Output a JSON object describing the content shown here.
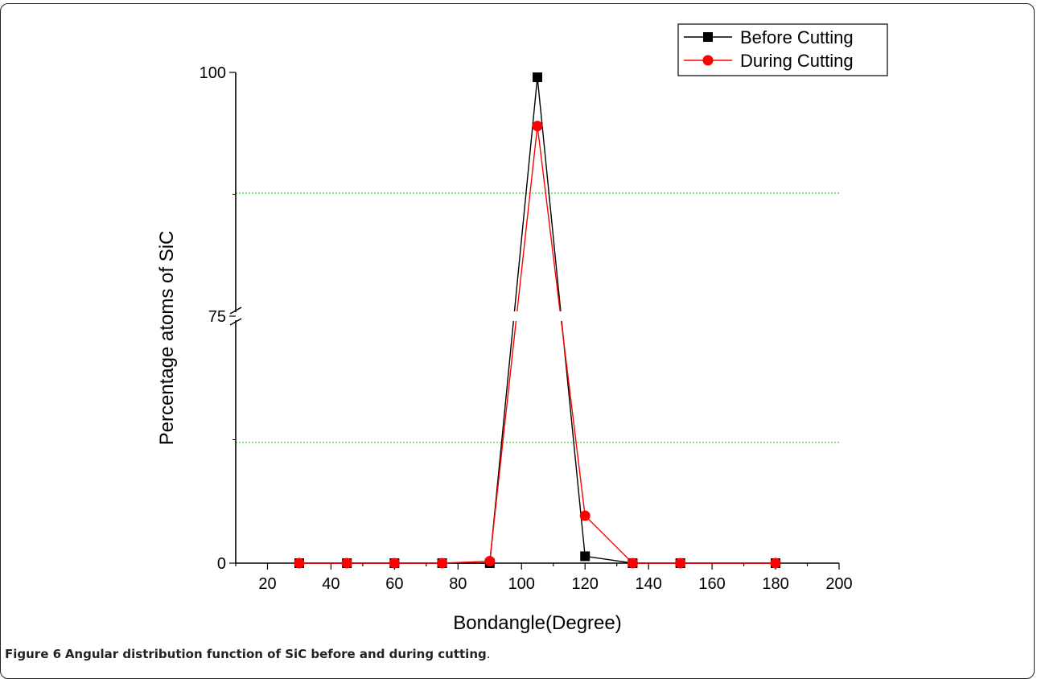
{
  "chart_data": {
    "type": "line",
    "xlabel": "Bondangle(Degree)",
    "ylabel": "Percentage atoms of SiC",
    "xlim": [
      10,
      200
    ],
    "x_ticks": [
      "20",
      "40",
      "60",
      "80",
      "100",
      "120",
      "140",
      "160",
      "180",
      "200"
    ],
    "y_ticks": [
      "0",
      "75",
      "100"
    ],
    "y_axis_break": [
      25,
      75
    ],
    "legend_position": "top-right",
    "series": [
      {
        "name": "Before Cutting",
        "color": "#000000",
        "marker": "square",
        "points": [
          [
            30,
            0
          ],
          [
            45,
            0
          ],
          [
            60,
            0
          ],
          [
            75,
            0
          ],
          [
            90,
            0
          ],
          [
            105,
            99.5
          ],
          [
            120,
            0.7
          ],
          [
            135,
            0
          ],
          [
            150,
            0
          ],
          [
            180,
            0
          ]
        ]
      },
      {
        "name": "During Cutting",
        "color": "#ff0000",
        "marker": "circle",
        "points": [
          [
            30,
            0
          ],
          [
            45,
            0
          ],
          [
            60,
            0
          ],
          [
            75,
            0
          ],
          [
            90,
            0.2
          ],
          [
            105,
            94.5
          ],
          [
            120,
            4.8
          ],
          [
            135,
            0
          ],
          [
            150,
            0
          ],
          [
            180,
            0
          ]
        ]
      }
    ],
    "gridlines": {
      "color": "#00cc00",
      "style": "dotted"
    }
  },
  "caption": {
    "label": "Figure 6",
    "text": "Angular distribution function of SiC before and during cutting",
    "end": "."
  }
}
